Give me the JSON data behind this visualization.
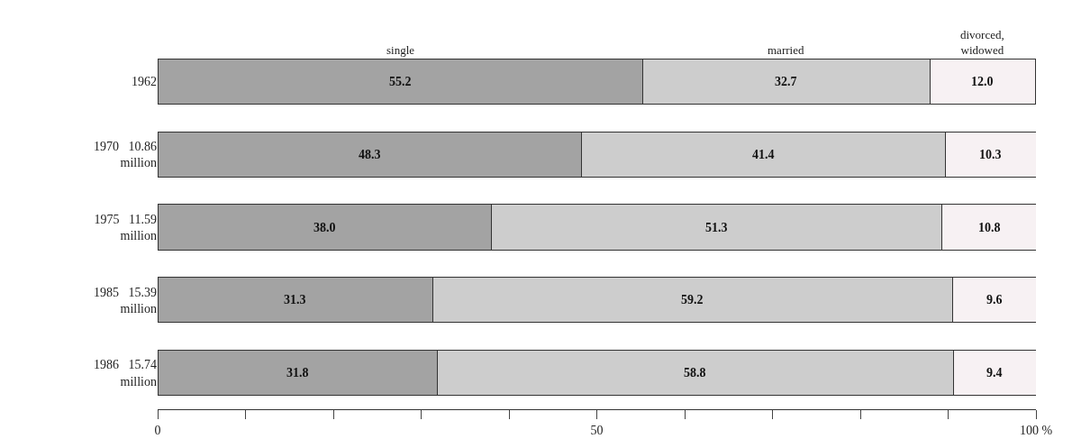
{
  "chart_data": {
    "type": "bar",
    "orientation": "horizontal",
    "stacked": true,
    "categories": [
      "1962",
      "1970   10.86\nmillion",
      "1975   11.59\nmillion",
      "1985   15.39\nmillion",
      "1986   15.74\nmillion"
    ],
    "series": [
      {
        "name": "single",
        "color": "#a3a3a3",
        "values": [
          55.2,
          48.3,
          38.0,
          31.3,
          31.8
        ],
        "value_labels": [
          "55.2",
          "48.3",
          "38.0",
          "31.3",
          "31.8"
        ]
      },
      {
        "name": "married",
        "color": "#cdcdcd",
        "values": [
          32.7,
          41.4,
          51.3,
          59.2,
          58.8
        ],
        "value_labels": [
          "32.7",
          "41.4",
          "51.3",
          "59.2",
          "58.8"
        ]
      },
      {
        "name": "divorced,\nwidowed",
        "color": "#f7f1f3",
        "values": [
          12.0,
          10.3,
          10.8,
          9.6,
          9.4
        ],
        "value_labels": [
          "12.0",
          "10.3",
          "10.8",
          "9.6",
          "9.4"
        ]
      }
    ],
    "xlim": [
      0,
      100
    ],
    "xticks": [
      0,
      {
        "value": 10,
        "label": null
      },
      {
        "value": 20,
        "label": null
      },
      {
        "value": 30,
        "label": null
      },
      {
        "value": 40,
        "label": null
      },
      50,
      {
        "value": 60,
        "label": null
      },
      {
        "value": 70,
        "label": null
      },
      {
        "value": 80,
        "label": null
      },
      {
        "value": 90,
        "label": null
      },
      {
        "value": 100,
        "label": "100 %"
      }
    ],
    "legend": false
  }
}
